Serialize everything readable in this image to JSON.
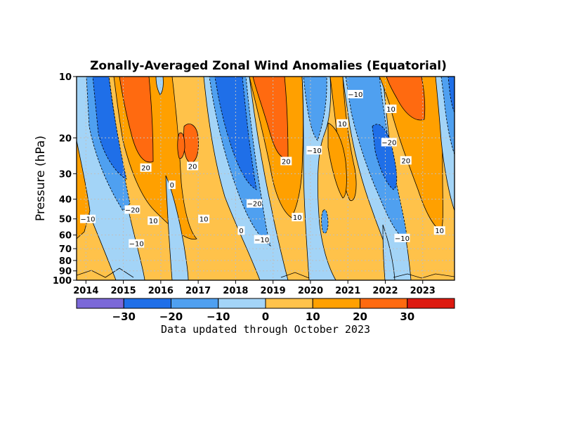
{
  "chart_data": {
    "type": "heatmap",
    "title": "Zonally-Averaged Zonal Wind Anomalies (Equatorial)",
    "ylabel": "Pressure (hPa)",
    "xlabel": "",
    "footer": "Data updated through October 2023",
    "x_ticks": [
      "2014",
      "2015",
      "2016",
      "2017",
      "2018",
      "2019",
      "2020",
      "2021",
      "2022",
      "2023"
    ],
    "y_ticks": [
      "10",
      "20",
      "30",
      "40",
      "50",
      "60",
      "70",
      "80",
      "90",
      "100"
    ],
    "y_tick_values": [
      10,
      20,
      30,
      40,
      50,
      60,
      70,
      80,
      90,
      100
    ],
    "xlim": [
      2013.75,
      2023.85
    ],
    "ylim": [
      100,
      10
    ],
    "y_scale": "log",
    "grid": true,
    "colorbar": {
      "boundaries": [
        -40,
        -30,
        -20,
        -10,
        0,
        10,
        20,
        30,
        40
      ],
      "tick_labels": [
        "−30",
        "−20",
        "−10",
        "0",
        "10",
        "20",
        "30"
      ],
      "colors": [
        "#7b68d8",
        "#1f6fe8",
        "#4fa0f0",
        "#a3d4f7",
        "#ffc24a",
        "#ffa000",
        "#ff6a10",
        "#dd1a10"
      ]
    },
    "contour_labels": [
      {
        "text": "−10",
        "year": 2014.05,
        "p": 50
      },
      {
        "text": "−20",
        "year": 2015.24,
        "p": 45
      },
      {
        "text": "−10",
        "year": 2015.35,
        "p": 66
      },
      {
        "text": "20",
        "year": 2015.6,
        "p": 28
      },
      {
        "text": "10",
        "year": 2015.8,
        "p": 51
      },
      {
        "text": "0",
        "year": 2016.3,
        "p": 34
      },
      {
        "text": "20",
        "year": 2016.85,
        "p": 27.5
      },
      {
        "text": "10",
        "year": 2017.15,
        "p": 50
      },
      {
        "text": "0",
        "year": 2018.15,
        "p": 57
      },
      {
        "text": "−20",
        "year": 2018.5,
        "p": 42
      },
      {
        "text": "−10",
        "year": 2018.7,
        "p": 63
      },
      {
        "text": "20",
        "year": 2019.35,
        "p": 26
      },
      {
        "text": "10",
        "year": 2019.65,
        "p": 49
      },
      {
        "text": "−10",
        "year": 2020.1,
        "p": 23
      },
      {
        "text": "10",
        "year": 2020.85,
        "p": 17
      },
      {
        "text": "−10",
        "year": 2021.2,
        "p": 12.2
      },
      {
        "text": "10",
        "year": 2022.15,
        "p": 14.4
      },
      {
        "text": "−20",
        "year": 2022.1,
        "p": 21
      },
      {
        "text": "20",
        "year": 2022.55,
        "p": 25.8
      },
      {
        "text": "−10",
        "year": 2022.45,
        "p": 62
      },
      {
        "text": "10",
        "year": 2023.45,
        "p": 57
      }
    ]
  },
  "colors": {
    "dashed_contour": "#222222",
    "grid": "#bfbfbf",
    "frame": "#000000"
  }
}
